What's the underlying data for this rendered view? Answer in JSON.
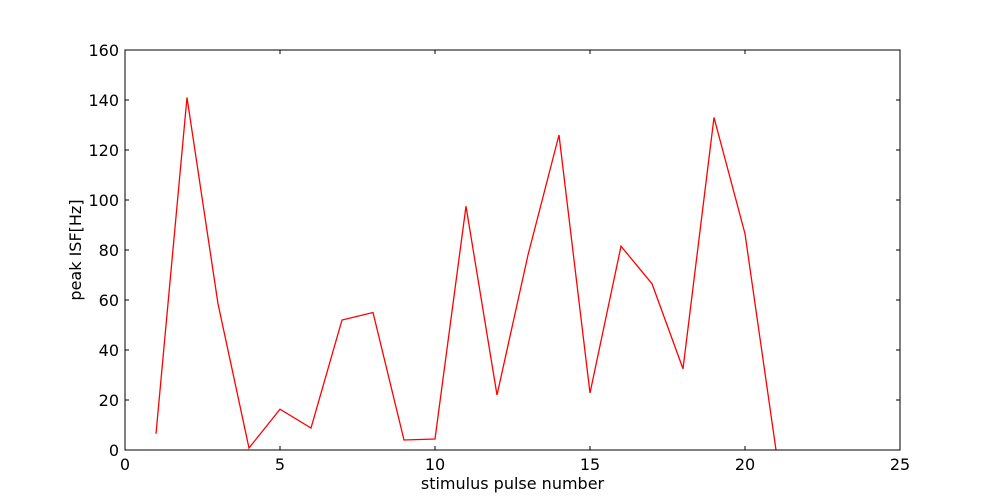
{
  "chart_data": {
    "type": "line",
    "title": "",
    "xlabel": "stimulus pulse number",
    "ylabel": "peak ISF[Hz]",
    "xlim": [
      0,
      25
    ],
    "ylim": [
      0,
      160
    ],
    "xticks": [
      0,
      5,
      10,
      15,
      20,
      25
    ],
    "yticks": [
      0,
      20,
      40,
      60,
      80,
      100,
      120,
      140,
      160
    ],
    "grid": false,
    "legend": "none",
    "series": [
      {
        "color": "#ff0000",
        "x": [
          1,
          2,
          3,
          4,
          5,
          6,
          7,
          8,
          9,
          10,
          11,
          12,
          13,
          14,
          15,
          16,
          17,
          18,
          19,
          20,
          21
        ],
        "y": [
          6.5,
          141,
          58.5,
          0.8,
          16.3,
          8.8,
          52,
          55,
          4,
          4.4,
          97.5,
          22,
          78,
          126,
          22.8,
          81.5,
          66.5,
          32.5,
          133,
          86.5,
          0
        ]
      }
    ]
  }
}
